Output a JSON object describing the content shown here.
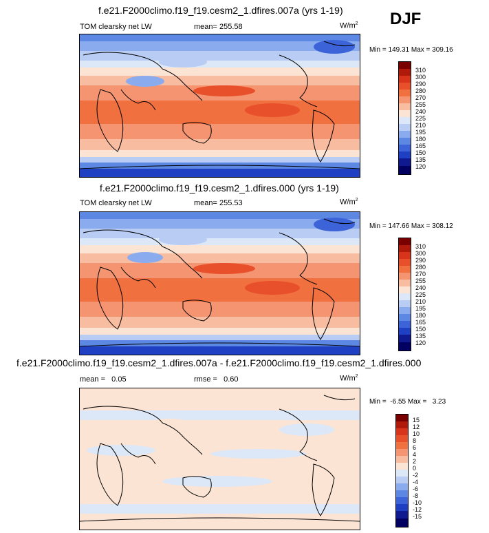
{
  "season": "DJF",
  "units_base": "W/m",
  "units_exp": "2",
  "panels": [
    {
      "title": "f.e21.F2000climo.f19_f19.cesm2_1.dfires.007a (yrs 1-19)",
      "variable": "TOM clearsky net LW",
      "mean": "mean= 255.58",
      "minmax": "Min = 149.31 Max = 309.16",
      "levels": [
        "310",
        "300",
        "290",
        "280",
        "270",
        "255",
        "240",
        "225",
        "210",
        "195",
        "180",
        "165",
        "150",
        "135",
        "120"
      ],
      "colors": [
        "#7a0000",
        "#b01a0a",
        "#d8341c",
        "#e8502c",
        "#f07040",
        "#f49470",
        "#f8bca0",
        "#fce4d4",
        "#dce8f8",
        "#b8ccf4",
        "#8aacee",
        "#5c88e4",
        "#3c64d8",
        "#2040c4",
        "#101a90",
        "#020060"
      ]
    },
    {
      "title": "f.e21.F2000climo.f19_f19.cesm2_1.dfires.000 (yrs 1-19)",
      "variable": "TOM clearsky net LW",
      "mean": "mean= 255.53",
      "minmax": "Min = 147.66 Max = 308.12",
      "levels": [
        "310",
        "300",
        "290",
        "280",
        "270",
        "255",
        "240",
        "225",
        "210",
        "195",
        "180",
        "165",
        "150",
        "135",
        "120"
      ],
      "colors": [
        "#7a0000",
        "#b01a0a",
        "#d8341c",
        "#e8502c",
        "#f07040",
        "#f49470",
        "#f8bca0",
        "#fce4d4",
        "#dce8f8",
        "#b8ccf4",
        "#8aacee",
        "#5c88e4",
        "#3c64d8",
        "#2040c4",
        "#101a90",
        "#020060"
      ]
    },
    {
      "title": "f.e21.F2000climo.f19_f19.cesm2_1.dfires.007a - f.e21.F2000climo.f19_f19.cesm2_1.dfires.000",
      "mean": "mean =   0.05",
      "rmse": "rmse =   0.60",
      "minmax": "Min =  -6.55 Max =   3.23",
      "levels": [
        "15",
        "12",
        "10",
        "8",
        "6",
        "4",
        "2",
        "0",
        "-2",
        "-4",
        "-6",
        "-8",
        "-10",
        "-12",
        "-15"
      ],
      "colors": [
        "#7a0000",
        "#b01a0a",
        "#d8341c",
        "#e8502c",
        "#f07040",
        "#f49470",
        "#f8bca0",
        "#fce4d4",
        "#dce8f8",
        "#b8ccf4",
        "#8aacee",
        "#5c88e4",
        "#3c64d8",
        "#2040c4",
        "#101a90",
        "#020060"
      ]
    }
  ]
}
